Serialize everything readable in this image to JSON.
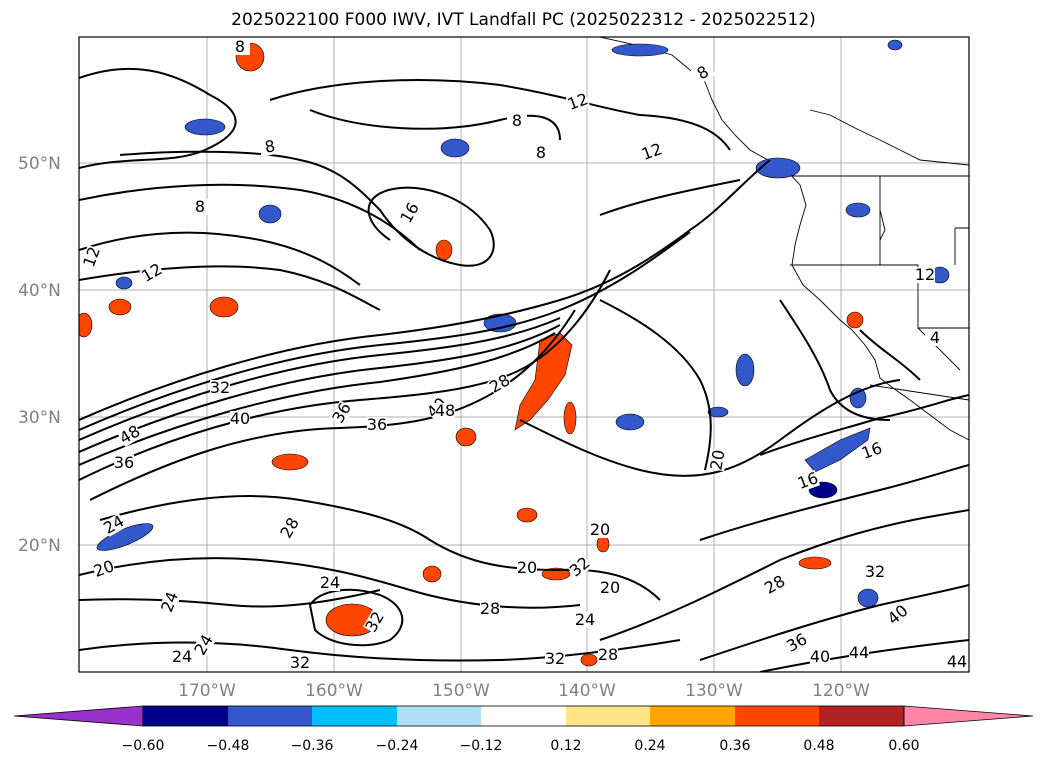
{
  "title": "2025022100 F000 IWV, IVT Landfall PC (2025022312 - 2025022512)",
  "lat_labels": [
    "50°N",
    "40°N",
    "30°N",
    "20°N"
  ],
  "lon_labels": [
    "170°W",
    "160°W",
    "150°W",
    "140°W",
    "130°W",
    "120°W"
  ],
  "colorbar": {
    "ticks": [
      "−0.60",
      "−0.48",
      "−0.36",
      "−0.24",
      "−0.12",
      "0.12",
      "0.24",
      "0.36",
      "0.48",
      "0.60"
    ],
    "colors": [
      "#9932cc",
      "#00008b",
      "#3358cc",
      "#00bfff",
      "#aee0f5",
      "#ffffff",
      "#ffe58a",
      "#ffa500",
      "#ff4500",
      "#b22222",
      "#ff85a8"
    ]
  },
  "contour_labels": [
    "8",
    "8",
    "8",
    "8",
    "8",
    "8",
    "12",
    "12",
    "12",
    "12",
    "12",
    "16",
    "16",
    "16",
    "20",
    "20",
    "20",
    "20",
    "20",
    "24",
    "24",
    "24",
    "24",
    "24",
    "24",
    "28",
    "28",
    "28",
    "28",
    "28",
    "32",
    "32",
    "32",
    "32",
    "32",
    "32",
    "36",
    "36",
    "36",
    "36",
    "40",
    "40",
    "40",
    "40",
    "44",
    "44",
    "48",
    "48",
    "4"
  ]
}
